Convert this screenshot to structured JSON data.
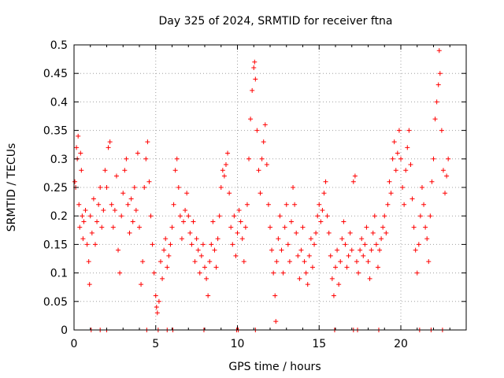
{
  "chart_data": {
    "type": "scatter",
    "title": "Day 325 of 2024, SRMTID for receiver ftna",
    "xlabel": "GPS time / hours",
    "ylabel": "SRMTID / TECUs",
    "xlim": [
      0,
      24
    ],
    "ylim": [
      0,
      0.5
    ],
    "x_ticks": [
      0,
      5,
      10,
      15,
      20
    ],
    "x_tick_labels": [
      "0",
      "5",
      "10",
      "15",
      "20"
    ],
    "y_ticks": [
      0,
      0.05,
      0.1,
      0.15,
      0.2,
      0.25,
      0.3,
      0.35,
      0.4,
      0.45,
      0.5
    ],
    "y_tick_labels": [
      "0",
      "0.05",
      "0.1",
      "0.15",
      "0.2",
      "0.25",
      "0.3",
      "0.35",
      "0.4",
      "0.45",
      "0.5"
    ],
    "grid": true,
    "marker": "+",
    "marker_color": "#ff0000",
    "series": [
      {
        "name": "SRMTID",
        "points": [
          [
            0.05,
            0.26
          ],
          [
            0.1,
            0.25
          ],
          [
            0.15,
            0.32
          ],
          [
            0.2,
            0.3
          ],
          [
            0.25,
            0.34
          ],
          [
            0.3,
            0.22
          ],
          [
            0.35,
            0.18
          ],
          [
            0.4,
            0.31
          ],
          [
            0.45,
            0.28
          ],
          [
            0.5,
            0.2
          ],
          [
            0.55,
            0.16
          ],
          [
            0.6,
            0.19
          ],
          [
            0.7,
            0.21
          ],
          [
            0.8,
            0.15
          ],
          [
            0.9,
            0.12
          ],
          [
            0.95,
            0.08
          ],
          [
            1.0,
            0.2
          ],
          [
            1.1,
            0.17
          ],
          [
            1.2,
            0.23
          ],
          [
            1.3,
            0.15
          ],
          [
            1.4,
            0.19
          ],
          [
            1.5,
            0.22
          ],
          [
            1.6,
            0.25
          ],
          [
            1.7,
            0.18
          ],
          [
            1.8,
            0.21
          ],
          [
            1.9,
            0.28
          ],
          [
            2.0,
            0.25
          ],
          [
            2.1,
            0.32
          ],
          [
            2.2,
            0.33
          ],
          [
            2.3,
            0.22
          ],
          [
            2.4,
            0.18
          ],
          [
            2.5,
            0.21
          ],
          [
            2.6,
            0.27
          ],
          [
            2.7,
            0.14
          ],
          [
            2.8,
            0.1
          ],
          [
            2.9,
            0.2
          ],
          [
            3.0,
            0.24
          ],
          [
            3.1,
            0.28
          ],
          [
            3.2,
            0.3
          ],
          [
            3.3,
            0.22
          ],
          [
            3.4,
            0.17
          ],
          [
            3.5,
            0.23
          ],
          [
            3.6,
            0.19
          ],
          [
            3.7,
            0.25
          ],
          [
            3.8,
            0.21
          ],
          [
            3.9,
            0.31
          ],
          [
            4.0,
            0.18
          ],
          [
            4.1,
            0.08
          ],
          [
            4.2,
            0.12
          ],
          [
            4.3,
            0.25
          ],
          [
            4.4,
            0.3
          ],
          [
            4.5,
            0.33
          ],
          [
            4.6,
            0.26
          ],
          [
            4.7,
            0.2
          ],
          [
            4.8,
            0.15
          ],
          [
            4.9,
            0.1
          ],
          [
            5.0,
            0.06
          ],
          [
            5.05,
            0.04
          ],
          [
            5.1,
            0.03
          ],
          [
            5.2,
            0.05
          ],
          [
            5.3,
            0.12
          ],
          [
            5.4,
            0.09
          ],
          [
            5.5,
            0.14
          ],
          [
            5.6,
            0.16
          ],
          [
            5.7,
            0.11
          ],
          [
            5.8,
            0.13
          ],
          [
            5.9,
            0.15
          ],
          [
            6.0,
            0.18
          ],
          [
            6.1,
            0.22
          ],
          [
            6.2,
            0.28
          ],
          [
            6.3,
            0.3
          ],
          [
            6.4,
            0.25
          ],
          [
            6.5,
            0.2
          ],
          [
            6.6,
            0.16
          ],
          [
            6.7,
            0.19
          ],
          [
            6.8,
            0.21
          ],
          [
            6.9,
            0.24
          ],
          [
            7.0,
            0.2
          ],
          [
            7.1,
            0.17
          ],
          [
            7.2,
            0.15
          ],
          [
            7.3,
            0.19
          ],
          [
            7.4,
            0.12
          ],
          [
            7.5,
            0.16
          ],
          [
            7.6,
            0.14
          ],
          [
            7.7,
            0.1
          ],
          [
            7.8,
            0.13
          ],
          [
            7.9,
            0.15
          ],
          [
            8.0,
            0.11
          ],
          [
            8.1,
            0.09
          ],
          [
            8.2,
            0.06
          ],
          [
            8.3,
            0.12
          ],
          [
            8.4,
            0.15
          ],
          [
            8.5,
            0.19
          ],
          [
            8.6,
            0.14
          ],
          [
            8.7,
            0.11
          ],
          [
            8.8,
            0.16
          ],
          [
            8.9,
            0.2
          ],
          [
            9.0,
            0.25
          ],
          [
            9.1,
            0.28
          ],
          [
            9.2,
            0.27
          ],
          [
            9.3,
            0.29
          ],
          [
            9.4,
            0.31
          ],
          [
            9.5,
            0.24
          ],
          [
            9.6,
            0.18
          ],
          [
            9.7,
            0.15
          ],
          [
            9.8,
            0.2
          ],
          [
            9.9,
            0.13
          ],
          [
            10.0,
            0.17
          ],
          [
            10.1,
            0.21
          ],
          [
            10.2,
            0.19
          ],
          [
            10.3,
            0.16
          ],
          [
            10.4,
            0.12
          ],
          [
            10.5,
            0.18
          ],
          [
            10.6,
            0.22
          ],
          [
            10.7,
            0.3
          ],
          [
            10.8,
            0.37
          ],
          [
            10.9,
            0.42
          ],
          [
            11.0,
            0.46
          ],
          [
            11.05,
            0.47
          ],
          [
            11.1,
            0.44
          ],
          [
            11.2,
            0.35
          ],
          [
            11.3,
            0.28
          ],
          [
            11.4,
            0.24
          ],
          [
            11.5,
            0.3
          ],
          [
            11.6,
            0.33
          ],
          [
            11.7,
            0.36
          ],
          [
            11.8,
            0.29
          ],
          [
            11.9,
            0.22
          ],
          [
            12.0,
            0.18
          ],
          [
            12.1,
            0.14
          ],
          [
            12.2,
            0.1
          ],
          [
            12.3,
            0.06
          ],
          [
            12.35,
            0.015
          ],
          [
            12.4,
            0.12
          ],
          [
            12.5,
            0.16
          ],
          [
            12.6,
            0.2
          ],
          [
            12.7,
            0.14
          ],
          [
            12.8,
            0.1
          ],
          [
            12.9,
            0.18
          ],
          [
            13.0,
            0.22
          ],
          [
            13.1,
            0.15
          ],
          [
            13.2,
            0.12
          ],
          [
            13.3,
            0.19
          ],
          [
            13.4,
            0.25
          ],
          [
            13.5,
            0.22
          ],
          [
            13.6,
            0.17
          ],
          [
            13.7,
            0.13
          ],
          [
            13.8,
            0.09
          ],
          [
            13.9,
            0.14
          ],
          [
            14.0,
            0.18
          ],
          [
            14.1,
            0.12
          ],
          [
            14.2,
            0.1
          ],
          [
            14.3,
            0.08
          ],
          [
            14.4,
            0.13
          ],
          [
            14.5,
            0.16
          ],
          [
            14.6,
            0.11
          ],
          [
            14.7,
            0.15
          ],
          [
            14.8,
            0.17
          ],
          [
            14.9,
            0.2
          ],
          [
            15.0,
            0.22
          ],
          [
            15.1,
            0.19
          ],
          [
            15.2,
            0.21
          ],
          [
            15.3,
            0.24
          ],
          [
            15.4,
            0.26
          ],
          [
            15.5,
            0.2
          ],
          [
            15.6,
            0.17
          ],
          [
            15.7,
            0.13
          ],
          [
            15.8,
            0.09
          ],
          [
            15.9,
            0.06
          ],
          [
            16.0,
            0.11
          ],
          [
            16.1,
            0.14
          ],
          [
            16.2,
            0.08
          ],
          [
            16.3,
            0.12
          ],
          [
            16.4,
            0.16
          ],
          [
            16.5,
            0.19
          ],
          [
            16.6,
            0.15
          ],
          [
            16.7,
            0.11
          ],
          [
            16.8,
            0.13
          ],
          [
            16.9,
            0.17
          ],
          [
            17.0,
            0.14
          ],
          [
            17.1,
            0.26
          ],
          [
            17.2,
            0.27
          ],
          [
            17.3,
            0.12
          ],
          [
            17.4,
            0.1
          ],
          [
            17.5,
            0.14
          ],
          [
            17.6,
            0.16
          ],
          [
            17.7,
            0.13
          ],
          [
            17.8,
            0.15
          ],
          [
            17.9,
            0.18
          ],
          [
            18.0,
            0.12
          ],
          [
            18.1,
            0.09
          ],
          [
            18.2,
            0.14
          ],
          [
            18.3,
            0.17
          ],
          [
            18.4,
            0.2
          ],
          [
            18.5,
            0.15
          ],
          [
            18.6,
            0.11
          ],
          [
            18.7,
            0.14
          ],
          [
            18.8,
            0.16
          ],
          [
            18.9,
            0.18
          ],
          [
            19.0,
            0.2
          ],
          [
            19.1,
            0.17
          ],
          [
            19.2,
            0.22
          ],
          [
            19.3,
            0.26
          ],
          [
            19.4,
            0.24
          ],
          [
            19.5,
            0.3
          ],
          [
            19.6,
            0.33
          ],
          [
            19.7,
            0.28
          ],
          [
            19.8,
            0.31
          ],
          [
            19.9,
            0.35
          ],
          [
            20.0,
            0.3
          ],
          [
            20.1,
            0.25
          ],
          [
            20.2,
            0.22
          ],
          [
            20.3,
            0.28
          ],
          [
            20.4,
            0.32
          ],
          [
            20.5,
            0.35
          ],
          [
            20.6,
            0.29
          ],
          [
            20.7,
            0.23
          ],
          [
            20.8,
            0.18
          ],
          [
            20.9,
            0.14
          ],
          [
            21.0,
            0.1
          ],
          [
            21.1,
            0.15
          ],
          [
            21.2,
            0.2
          ],
          [
            21.3,
            0.25
          ],
          [
            21.4,
            0.22
          ],
          [
            21.5,
            0.18
          ],
          [
            21.6,
            0.16
          ],
          [
            21.7,
            0.12
          ],
          [
            21.8,
            0.2
          ],
          [
            21.9,
            0.26
          ],
          [
            22.0,
            0.3
          ],
          [
            22.1,
            0.37
          ],
          [
            22.2,
            0.4
          ],
          [
            22.3,
            0.43
          ],
          [
            22.35,
            0.49
          ],
          [
            22.4,
            0.45
          ],
          [
            22.5,
            0.35
          ],
          [
            22.6,
            0.28
          ],
          [
            22.7,
            0.24
          ],
          [
            22.8,
            0.27
          ],
          [
            22.9,
            0.3
          ],
          [
            1.05,
            0.0
          ],
          [
            1.6,
            0.0
          ],
          [
            2.0,
            0.0
          ],
          [
            4.45,
            0.0
          ],
          [
            5.15,
            0.0
          ],
          [
            5.7,
            0.0
          ],
          [
            6.05,
            0.0
          ],
          [
            7.95,
            0.0
          ],
          [
            9.95,
            0.0
          ],
          [
            10.05,
            0.0
          ],
          [
            11.1,
            0.0
          ],
          [
            15.95,
            0.0
          ],
          [
            17.1,
            0.0
          ],
          [
            17.35,
            0.0
          ],
          [
            18.65,
            0.0
          ],
          [
            21.15,
            0.0
          ],
          [
            21.85,
            0.0
          ],
          [
            22.55,
            0.0
          ]
        ]
      }
    ]
  }
}
